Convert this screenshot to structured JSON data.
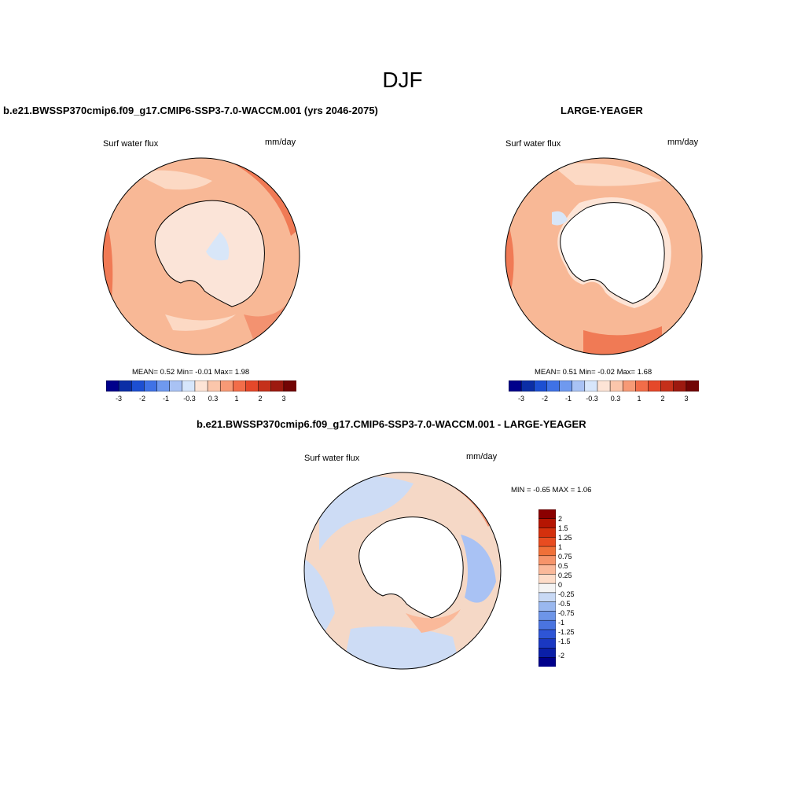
{
  "title": "DJF",
  "panels": [
    {
      "title": "b.e21.BWSSP370cmip6.f09_g17.CMIP6-SSP3-7.0-WACCM.001 (yrs 2046-2075)",
      "variable": "Surf water flux",
      "units": "mm/day",
      "stats": {
        "mean_label": "MEAN=",
        "mean": "0.52",
        "min_label": "Min=",
        "min": "-0.01",
        "max_label": "Max=",
        "max": "1.98"
      },
      "colorbar_ticks": [
        "-3",
        "-2",
        "-1",
        "-0.3",
        "0.3",
        "1",
        "2",
        "3"
      ]
    },
    {
      "title": "LARGE-YEAGER",
      "variable": "Surf water flux",
      "units": "mm/day",
      "stats": {
        "mean_label": "MEAN=",
        "mean": "0.51",
        "min_label": "Min=",
        "min": "-0.02",
        "max_label": "Max=",
        "max": "1.68"
      },
      "colorbar_ticks": [
        "-3",
        "-2",
        "-1",
        "-0.3",
        "0.3",
        "1",
        "2",
        "3"
      ]
    },
    {
      "title": "b.e21.BWSSP370cmip6.f09_g17.CMIP6-SSP3-7.0-WACCM.001 - LARGE-YEAGER",
      "variable": "Surf water flux",
      "units": "mm/day",
      "minmax": {
        "min_label": "MIN =",
        "min": "-0.65",
        "max_label": "MAX =",
        "max": "1.06"
      },
      "colorbar_ticks": [
        "2",
        "1.5",
        "1.25",
        "1",
        "0.75",
        "0.5",
        "0.25",
        "0",
        "-0.25",
        "-0.5",
        "-0.75",
        "-1",
        "-1.25",
        "-1.5",
        "-2"
      ]
    }
  ],
  "colors": {
    "abs_scale": [
      "#00008b",
      "#0b2ea6",
      "#1c4fd2",
      "#3f72e6",
      "#6f99ef",
      "#a9c2f4",
      "#d7e6fb",
      "#fde4d6",
      "#fbc6ab",
      "#f79a76",
      "#f26d49",
      "#e5482a",
      "#c5301a",
      "#9d190f",
      "#720404"
    ],
    "diff_scale": [
      "#8b0000",
      "#b51502",
      "#d4300d",
      "#e84c20",
      "#f07038",
      "#f6946a",
      "#fab99a",
      "#fddcc8",
      "#f4f4f4",
      "#c8d9f5",
      "#9ab8ef",
      "#6d95e8",
      "#4a74e0",
      "#2e55d6",
      "#1a38c2",
      "#0a1fa8",
      "#00008b"
    ],
    "ocean_base": "#f8b896",
    "ocean_high": "#f07a55",
    "antarctic_interior": "#fbe4d8",
    "diff_base": "#f5d8c6",
    "diff_neg": "#cddcf5"
  },
  "icons": [
    "polar-stereographic-map",
    "antarctica-coastline"
  ]
}
